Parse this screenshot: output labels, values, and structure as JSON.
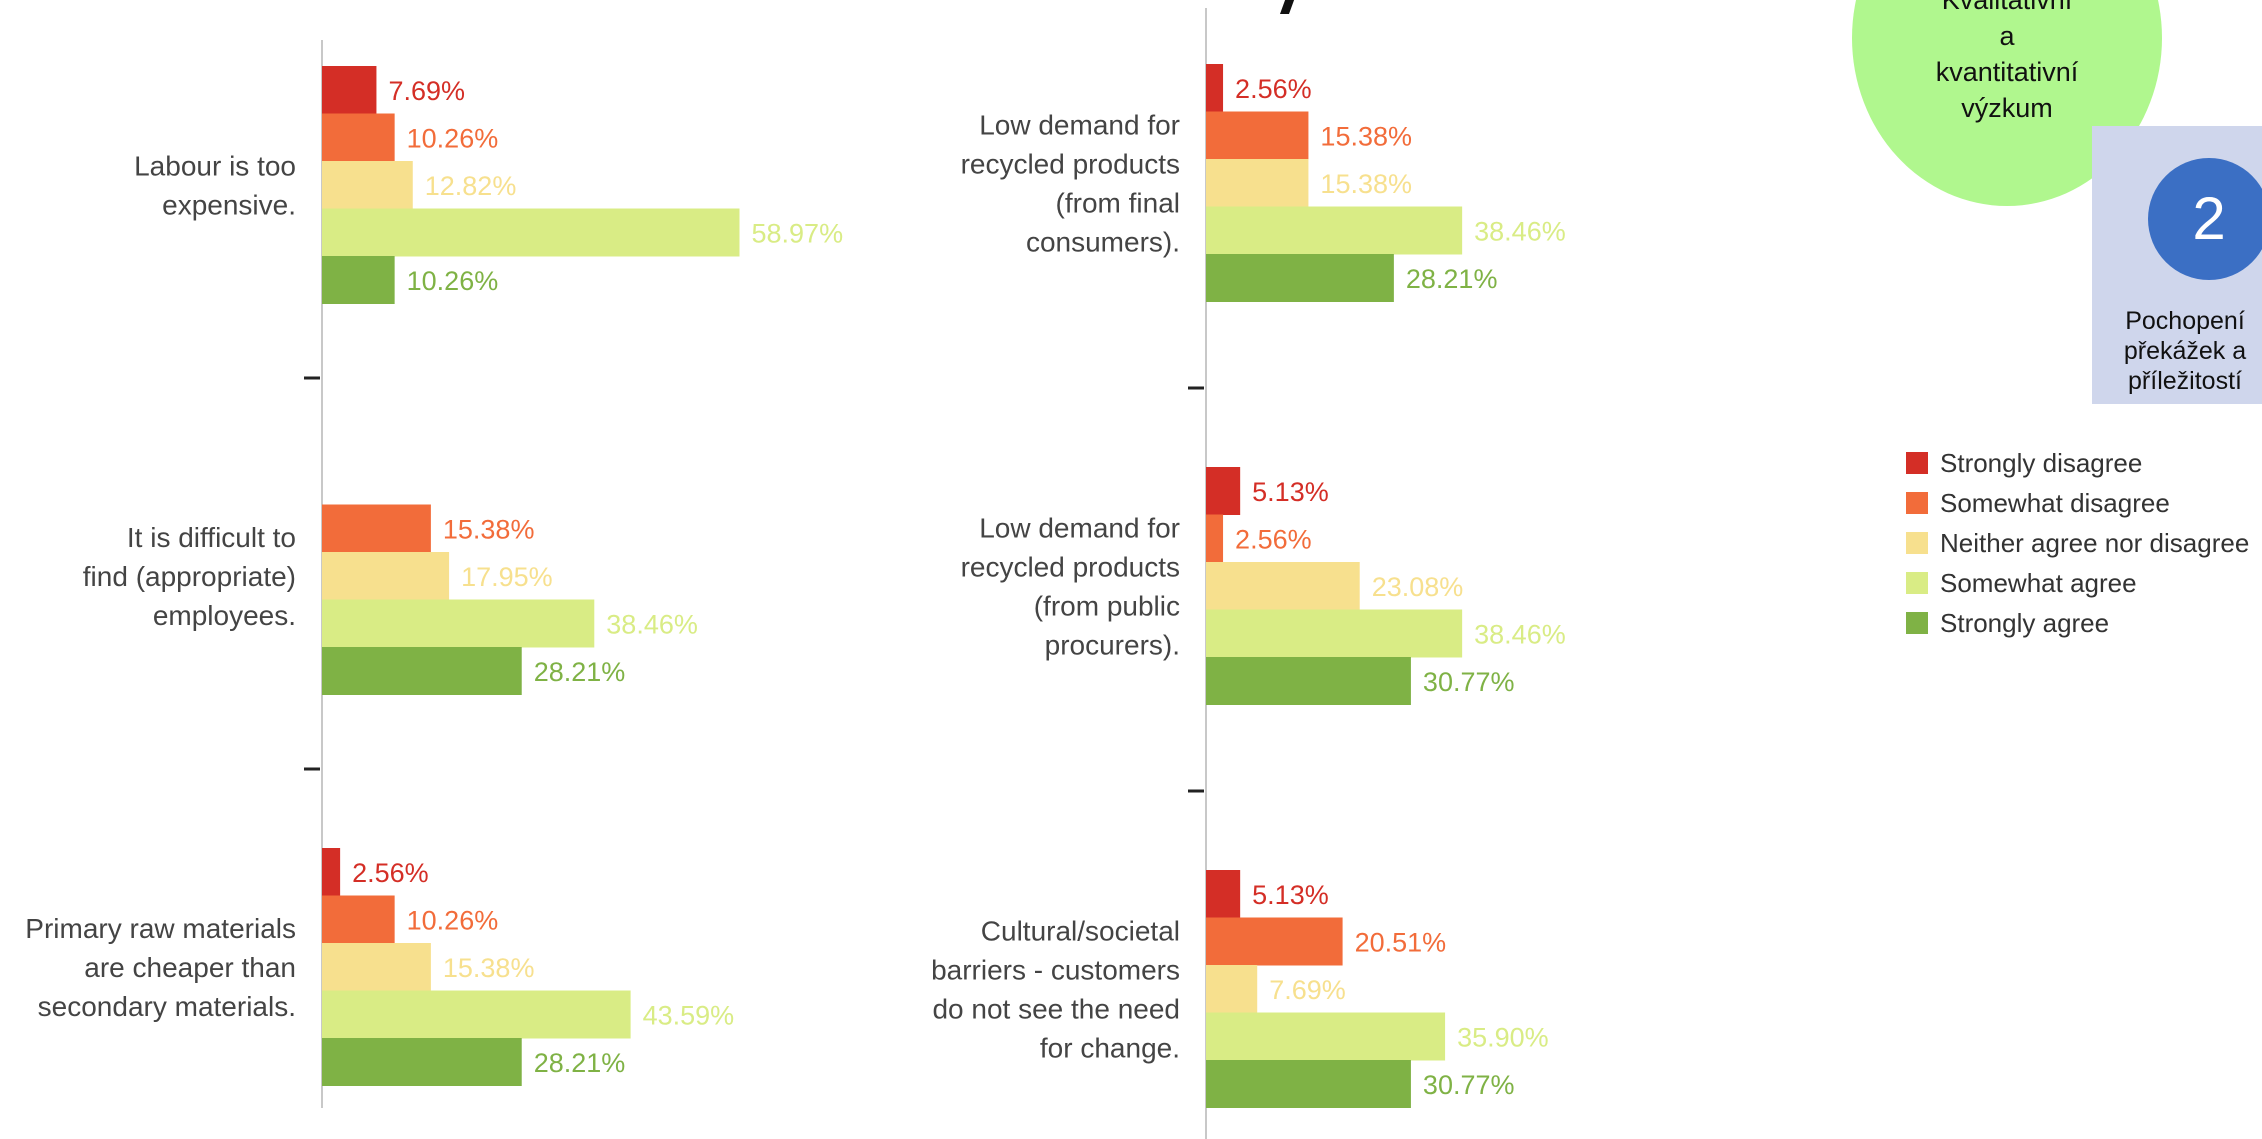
{
  "chart_data": {
    "type": "bar",
    "orientation": "horizontal",
    "xlim": [
      0,
      100
    ],
    "grid": false,
    "legend_placement": "right",
    "series": [
      {
        "name": "Strongly disagree",
        "color": "#d42e26"
      },
      {
        "name": "Somewhat disagree",
        "color": "#f26c3a"
      },
      {
        "name": "Neither agree nor disagree",
        "color": "#f7e08e"
      },
      {
        "name": "Somewhat agree",
        "color": "#d9ec85"
      },
      {
        "name": "Strongly agree",
        "color": "#7fb245"
      }
    ],
    "panels": [
      {
        "categories": [
          {
            "lines": [
              "Labour is too",
              "expensive."
            ],
            "values": [
              7.69,
              10.26,
              12.82,
              58.97,
              10.26
            ],
            "labels": [
              "7.69%",
              "10.26%",
              "12.82%",
              "58.97%",
              "10.26%"
            ]
          },
          {
            "lines": [
              "It is difficult to",
              "find (appropriate)",
              "employees."
            ],
            "values": [
              0,
              15.38,
              17.95,
              38.46,
              28.21
            ],
            "labels": [
              "",
              "15.38%",
              "17.95%",
              "38.46%",
              "28.21%"
            ]
          },
          {
            "lines": [
              "Primary raw materials",
              "are cheaper than",
              "secondary materials."
            ],
            "values": [
              2.56,
              10.26,
              15.38,
              43.59,
              28.21
            ],
            "labels": [
              "2.56%",
              "10.26%",
              "15.38%",
              "43.59%",
              "28.21%"
            ]
          }
        ]
      },
      {
        "categories": [
          {
            "lines": [
              "Low demand for",
              "recycled products",
              "(from final",
              "consumers)."
            ],
            "values": [
              2.56,
              15.38,
              15.38,
              38.46,
              28.21
            ],
            "labels": [
              "2.56%",
              "15.38%",
              "15.38%",
              "38.46%",
              "28.21%"
            ]
          },
          {
            "lines": [
              "Low demand for",
              "recycled products",
              "(from public",
              "procurers)."
            ],
            "values": [
              5.13,
              2.56,
              23.08,
              38.46,
              30.77
            ],
            "labels": [
              "5.13%",
              "2.56%",
              "23.08%",
              "38.46%",
              "30.77%"
            ]
          },
          {
            "lines": [
              "Cultural/societal",
              "barriers - customers",
              "do not see the need",
              "for change."
            ],
            "values": [
              5.13,
              20.51,
              7.69,
              35.9,
              30.77
            ],
            "labels": [
              "5.13%",
              "20.51%",
              "7.69%",
              "35.90%",
              "30.77%"
            ]
          }
        ]
      }
    ]
  },
  "decor": {
    "circle_lines": [
      "Kvalitativní",
      "a",
      "kvantitativní",
      "výzkum"
    ],
    "step_number": "2",
    "step_lines": [
      "Pochopení",
      "překážek a",
      "příležitostí"
    ],
    "circle_color": "#b0f78e",
    "panel_color": "#cfd6ec",
    "badge_color": "#3b6fc4"
  }
}
